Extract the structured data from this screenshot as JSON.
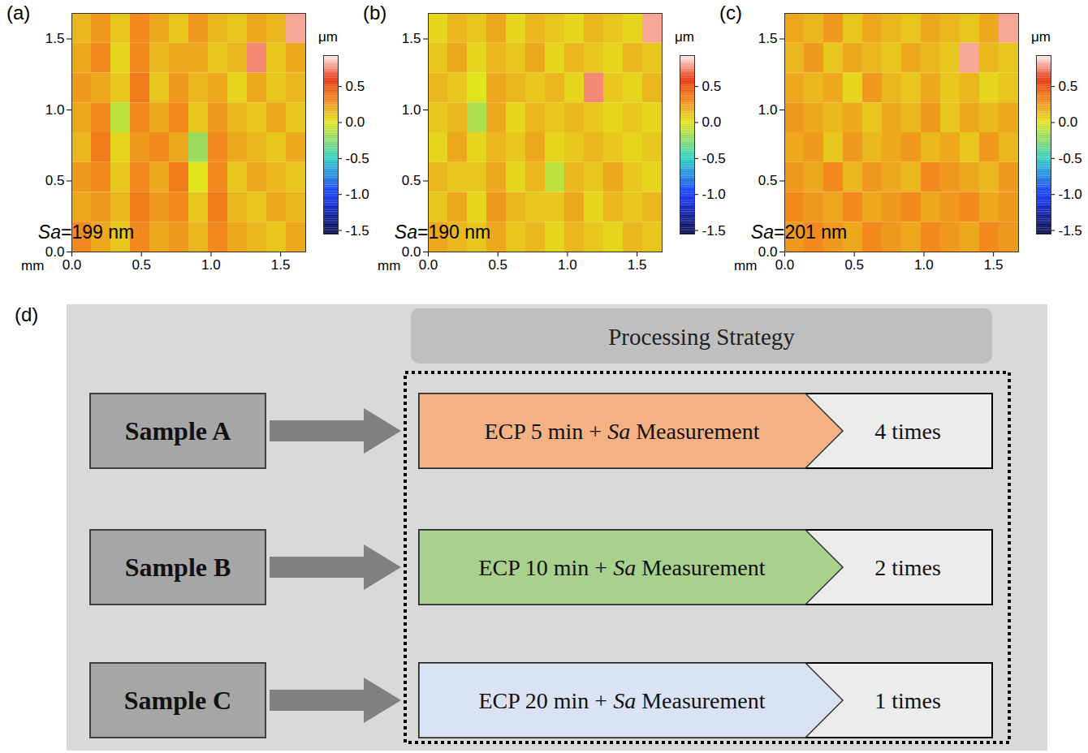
{
  "italic_term": "Sa",
  "chart_data": [
    {
      "type": "heatmap",
      "panel_label": "(a)",
      "annotation": "Sa=199 nm",
      "x_label": "mm",
      "xlim": [
        0,
        1.68
      ],
      "xticks": [
        {
          "value": 0,
          "label": "0.0"
        },
        0.5,
        {
          "value": 1,
          "label": "1.0"
        },
        1.5
      ],
      "ylim": [
        0,
        1.68
      ],
      "yticks": [
        {
          "value": 0,
          "label": "0.0"
        },
        0.5,
        {
          "value": 1,
          "label": "1.0"
        },
        1.5
      ],
      "cells": [
        [
          0.15,
          0.25,
          0.1,
          0.3,
          0.2,
          0.1,
          0.25,
          0.15,
          0.1,
          0.2,
          0.15,
          0.8
        ],
        [
          0.2,
          0.3,
          0.05,
          0.3,
          0.15,
          0.2,
          0.2,
          0.1,
          0.15,
          0.75,
          0.1,
          0.2
        ],
        [
          0.25,
          0.2,
          0.1,
          0.35,
          0.1,
          0.25,
          0.15,
          0.2,
          0.05,
          0.2,
          0.1,
          0.15
        ],
        [
          0.2,
          0.3,
          -0.1,
          0.3,
          0.2,
          0.3,
          0.1,
          0.25,
          0.15,
          0.1,
          0.2,
          0.1
        ],
        [
          0.15,
          0.35,
          0.05,
          0.25,
          0.3,
          0.2,
          -0.2,
          0.3,
          0.2,
          0.15,
          0.1,
          0.2
        ],
        [
          0.25,
          0.3,
          0.1,
          0.3,
          0.2,
          0.35,
          0.0,
          0.3,
          0.1,
          0.2,
          0.15,
          0.1
        ],
        [
          0.2,
          0.25,
          0.15,
          0.35,
          0.25,
          0.3,
          0.1,
          0.35,
          0.15,
          0.1,
          0.2,
          0.15
        ],
        [
          0.3,
          0.2,
          0.1,
          0.3,
          0.2,
          0.25,
          0.15,
          0.3,
          0.2,
          0.15,
          0.1,
          0.2
        ]
      ],
      "colorbar": {
        "label": "μm",
        "range": [
          -1.55,
          0.93
        ],
        "ticks": [
          0.5,
          {
            "value": 0,
            "label": "0.0"
          },
          -0.5,
          {
            "value": -1,
            "label": "-1.0"
          },
          -1.5
        ]
      }
    },
    {
      "type": "heatmap",
      "panel_label": "(b)",
      "annotation": "Sa=190 nm",
      "x_label": "mm",
      "xlim": [
        0,
        1.68
      ],
      "xticks": [
        {
          "value": 0,
          "label": "0.0"
        },
        0.5,
        {
          "value": 1,
          "label": "1.0"
        },
        1.5
      ],
      "ylim": [
        0,
        1.68
      ],
      "yticks": [
        {
          "value": 0,
          "label": "0.0"
        },
        0.5,
        {
          "value": 1,
          "label": "1.0"
        },
        1.5
      ],
      "cells": [
        [
          0.05,
          0.15,
          0.1,
          0.2,
          0.05,
          0.15,
          0.1,
          0.05,
          0.15,
          0.1,
          0.05,
          0.8
        ],
        [
          0.1,
          0.2,
          0.05,
          0.15,
          0.1,
          0.2,
          0.05,
          0.15,
          0.1,
          0.05,
          0.15,
          0.1
        ],
        [
          0.15,
          0.1,
          0.0,
          0.2,
          0.15,
          0.1,
          0.15,
          0.05,
          0.75,
          0.1,
          0.05,
          0.15
        ],
        [
          0.1,
          0.15,
          -0.15,
          0.2,
          0.05,
          0.15,
          0.1,
          0.15,
          0.1,
          0.05,
          0.1,
          0.05
        ],
        [
          0.05,
          0.2,
          0.05,
          0.15,
          0.1,
          0.2,
          0.05,
          0.1,
          0.15,
          0.1,
          0.05,
          0.1
        ],
        [
          0.15,
          0.1,
          0.1,
          0.2,
          0.05,
          0.15,
          -0.1,
          0.15,
          0.1,
          0.2,
          0.1,
          0.05
        ],
        [
          0.1,
          0.2,
          0.05,
          0.25,
          0.15,
          0.1,
          0.1,
          0.2,
          0.05,
          0.15,
          0.1,
          0.15
        ],
        [
          0.2,
          0.15,
          0.1,
          0.2,
          0.1,
          0.15,
          0.05,
          0.15,
          0.1,
          0.05,
          0.15,
          0.1
        ]
      ],
      "colorbar": {
        "label": "μm",
        "range": [
          -1.55,
          0.93
        ],
        "ticks": [
          0.5,
          {
            "value": 0,
            "label": "0.0"
          },
          -0.5,
          {
            "value": -1,
            "label": "-1.0"
          },
          -1.5
        ]
      }
    },
    {
      "type": "heatmap",
      "panel_label": "(c)",
      "annotation": "Sa=201 nm",
      "x_label": "mm",
      "xlim": [
        0,
        1.68
      ],
      "xticks": [
        {
          "value": 0,
          "label": "0.0"
        },
        0.5,
        {
          "value": 1,
          "label": "1.0"
        },
        1.5
      ],
      "ylim": [
        0,
        1.68
      ],
      "yticks": [
        {
          "value": 0,
          "label": "0.0"
        },
        0.5,
        {
          "value": 1,
          "label": "1.0"
        },
        1.5
      ],
      "cells": [
        [
          0.2,
          0.15,
          0.25,
          0.1,
          0.2,
          0.15,
          0.1,
          0.2,
          0.15,
          0.1,
          0.2,
          0.8
        ],
        [
          0.15,
          0.25,
          0.1,
          0.2,
          0.15,
          0.1,
          0.2,
          0.15,
          0.1,
          0.8,
          0.15,
          0.1
        ],
        [
          0.2,
          0.15,
          0.2,
          0.05,
          0.25,
          0.15,
          0.1,
          0.2,
          0.1,
          0.15,
          0.05,
          0.1
        ],
        [
          0.25,
          0.2,
          0.15,
          0.2,
          0.1,
          0.2,
          0.15,
          0.25,
          0.1,
          0.2,
          0.15,
          0.2
        ],
        [
          0.2,
          0.25,
          0.1,
          0.25,
          0.15,
          0.2,
          0.25,
          0.15,
          0.2,
          0.1,
          0.25,
          0.15
        ],
        [
          0.25,
          0.2,
          0.3,
          0.15,
          0.25,
          0.2,
          0.15,
          0.3,
          0.25,
          0.2,
          0.15,
          0.25
        ],
        [
          0.3,
          0.25,
          0.2,
          0.3,
          0.2,
          0.25,
          0.3,
          0.2,
          0.25,
          0.3,
          0.2,
          0.25
        ],
        [
          0.25,
          0.3,
          0.25,
          0.2,
          0.3,
          0.25,
          0.2,
          0.3,
          0.25,
          0.2,
          0.3,
          0.25
        ]
      ],
      "colorbar": {
        "label": "μm",
        "range": [
          -1.55,
          0.93
        ],
        "ticks": [
          0.5,
          {
            "value": 0,
            "label": "0.0"
          },
          -0.5,
          {
            "value": -1,
            "label": "-1.0"
          },
          -1.5
        ]
      }
    }
  ],
  "diagram": {
    "panel_label": "(d)",
    "header": "Processing Strategy",
    "rows": [
      {
        "sample": "Sample A",
        "step": "ECP 5 min + Sa Measurement",
        "repeats": "4 times",
        "color": "#f4b183"
      },
      {
        "sample": "Sample B",
        "step": "ECP 10 min + Sa Measurement",
        "repeats": "2 times",
        "color": "#a9d18e"
      },
      {
        "sample": "Sample C",
        "step": "ECP 20 min + Sa Measurement",
        "repeats": "1 times",
        "color": "#dae3f3"
      }
    ]
  }
}
